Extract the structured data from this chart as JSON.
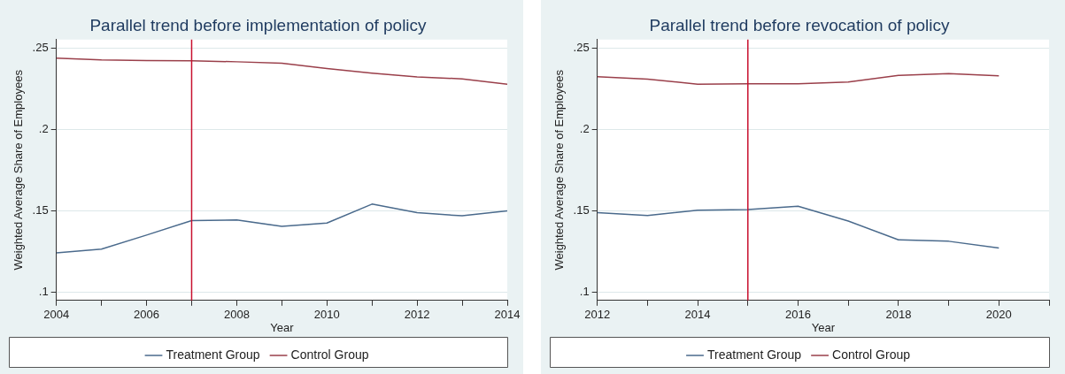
{
  "chart_data": [
    {
      "type": "line",
      "title": "Parallel trend before implementation of policy",
      "xlabel": "Year",
      "ylabel": "Weighted Average Share of Employees",
      "x": [
        2004,
        2005,
        2006,
        2007,
        2008,
        2009,
        2010,
        2011,
        2012,
        2013,
        2014
      ],
      "series": [
        {
          "name": "Treatment Group",
          "color": "#4a6a8c",
          "values": [
            0.1242,
            0.1265,
            0.1351,
            0.144,
            0.1444,
            0.1404,
            0.1425,
            0.1541,
            0.1488,
            0.1469,
            0.15
          ]
        },
        {
          "name": "Control Group",
          "color": "#9a3f4a",
          "values": [
            0.2437,
            0.2426,
            0.2422,
            0.242,
            0.2414,
            0.2405,
            0.2372,
            0.2344,
            0.2321,
            0.2309,
            0.2277
          ]
        }
      ],
      "xlim": [
        2004,
        2014
      ],
      "xticks": [
        2004,
        {
          "value": 2005,
          "label": null
        },
        2006,
        {
          "value": 2007,
          "label": null
        },
        2008,
        {
          "value": 2009,
          "label": null
        },
        2010,
        {
          "value": 2011,
          "label": null
        },
        2012,
        {
          "value": 2013,
          "label": null
        },
        2014
      ],
      "ylim": [
        0.095,
        0.255
      ],
      "yticks": [
        {
          "value": 0.1,
          "label": ".1"
        },
        {
          "value": 0.15,
          "label": ".15"
        },
        {
          "value": 0.2,
          "label": ".2"
        },
        {
          "value": 0.25,
          "label": ".25"
        }
      ],
      "ref_lines": [
        {
          "axis": "x",
          "value": 2007,
          "color": "#c8102e"
        }
      ],
      "grid": "y",
      "legend": "bottom",
      "marker": "none"
    },
    {
      "type": "line",
      "title": "Parallel trend before revocation of policy",
      "xlabel": "Year",
      "ylabel": "Weighted Average Share of Employees",
      "x": [
        2012,
        2013,
        2014,
        2015,
        2016,
        2017,
        2018,
        2019,
        2020
      ],
      "series": [
        {
          "name": "Treatment Group",
          "color": "#4a6a8c",
          "values": [
            0.1488,
            0.1471,
            0.1503,
            0.1507,
            0.1528,
            0.1437,
            0.1322,
            0.1313,
            0.1271
          ]
        },
        {
          "name": "Control Group",
          "color": "#9a3f4a",
          "values": [
            0.2322,
            0.2307,
            0.2277,
            0.2279,
            0.2279,
            0.229,
            0.233,
            0.2341,
            0.2328
          ]
        }
      ],
      "xlim": [
        2012,
        2021
      ],
      "xticks": [
        2012,
        {
          "value": 2013,
          "label": null
        },
        2014,
        {
          "value": 2015,
          "label": null
        },
        2016,
        {
          "value": 2017,
          "label": null
        },
        2018,
        {
          "value": 2019,
          "label": null
        },
        2020,
        {
          "value": 2021,
          "label": null
        }
      ],
      "ylim": [
        0.095,
        0.255
      ],
      "yticks": [
        {
          "value": 0.1,
          "label": ".1"
        },
        {
          "value": 0.15,
          "label": ".15"
        },
        {
          "value": 0.2,
          "label": ".2"
        },
        {
          "value": 0.25,
          "label": ".25"
        }
      ],
      "ref_lines": [
        {
          "axis": "x",
          "value": 2015,
          "color": "#c8102e"
        }
      ],
      "grid": "y",
      "legend": "bottom",
      "marker": "none"
    }
  ]
}
